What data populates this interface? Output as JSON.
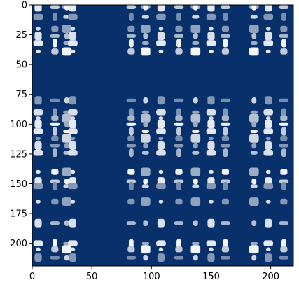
{
  "chart_data": {
    "type": "heatmap",
    "title": "",
    "xlabel": "",
    "ylabel": "",
    "colormap": "Blues",
    "background_color": "#08306b",
    "highlight_color": "#ffffff",
    "xlim": [
      0,
      219
    ],
    "ylim": [
      0,
      219
    ],
    "y_inverted": true,
    "grid": false,
    "x_ticks": [
      0,
      50,
      100,
      150,
      200
    ],
    "x_tick_labels": [
      "0",
      "50",
      "100",
      "150",
      "200"
    ],
    "y_ticks": [
      0,
      25,
      50,
      75,
      100,
      125,
      150,
      175,
      200
    ],
    "y_tick_labels": [
      "0",
      "25",
      "50",
      "75",
      "100",
      "125",
      "150",
      "175",
      "200"
    ],
    "row_bands": [
      0,
      2,
      10,
      20,
      26,
      32,
      39,
      80,
      90,
      95,
      100,
      106,
      112,
      118,
      124,
      140,
      148,
      152,
      165,
      183,
      200,
      205,
      212
    ],
    "col_bands": [
      5,
      19,
      29,
      34,
      83,
      95,
      108,
      123,
      137,
      150,
      162,
      186,
      198,
      211
    ],
    "band_intensity": [
      0.9,
      0.8,
      0.65,
      0.9,
      0.55,
      0.95,
      0.5,
      0.7,
      0.75,
      0.85,
      0.6,
      0.45,
      0.85,
      0.95,
      0.5
    ]
  }
}
